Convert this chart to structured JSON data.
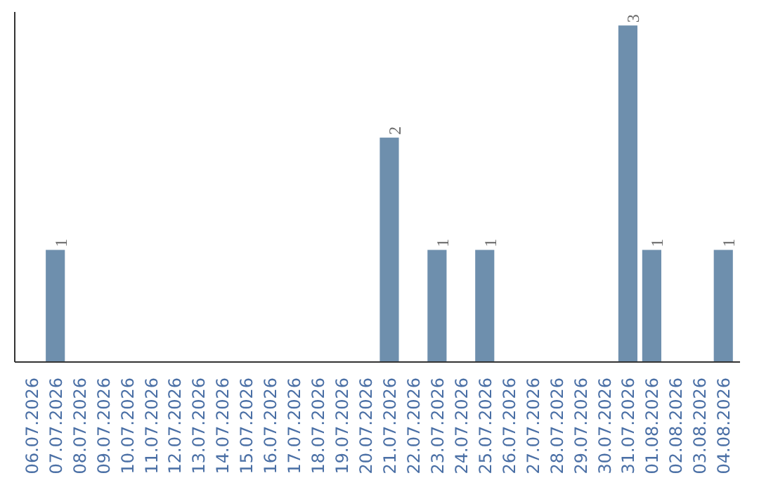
{
  "chart_data": {
    "type": "bar",
    "categories": [
      "06.07.2026",
      "07.07.2026",
      "08.07.2026",
      "09.07.2026",
      "10.07.2026",
      "11.07.2026",
      "12.07.2026",
      "13.07.2026",
      "14.07.2026",
      "15.07.2026",
      "16.07.2026",
      "17.07.2026",
      "18.07.2026",
      "19.07.2026",
      "20.07.2026",
      "21.07.2026",
      "22.07.2026",
      "23.07.2026",
      "24.07.2026",
      "25.07.2026",
      "26.07.2026",
      "27.07.2026",
      "28.07.2026",
      "29.07.2026",
      "30.07.2026",
      "31.07.2026",
      "01.08.2026",
      "02.08.2026",
      "03.08.2026",
      "04.08.2026"
    ],
    "values": [
      0,
      1,
      0,
      0,
      0,
      0,
      0,
      0,
      0,
      0,
      0,
      0,
      0,
      0,
      0,
      2,
      0,
      1,
      0,
      1,
      0,
      0,
      0,
      0,
      0,
      3,
      1,
      0,
      0,
      1
    ],
    "value_labels": [
      null,
      "1",
      null,
      null,
      null,
      null,
      null,
      null,
      null,
      null,
      null,
      null,
      null,
      null,
      null,
      "2",
      null,
      "1",
      null,
      "1",
      null,
      null,
      null,
      null,
      null,
      "3",
      "1",
      null,
      null,
      "1"
    ],
    "color": "#6e8fad",
    "ylim": [
      0,
      3.12
    ],
    "tick_labels": "x",
    "grid": false
  }
}
